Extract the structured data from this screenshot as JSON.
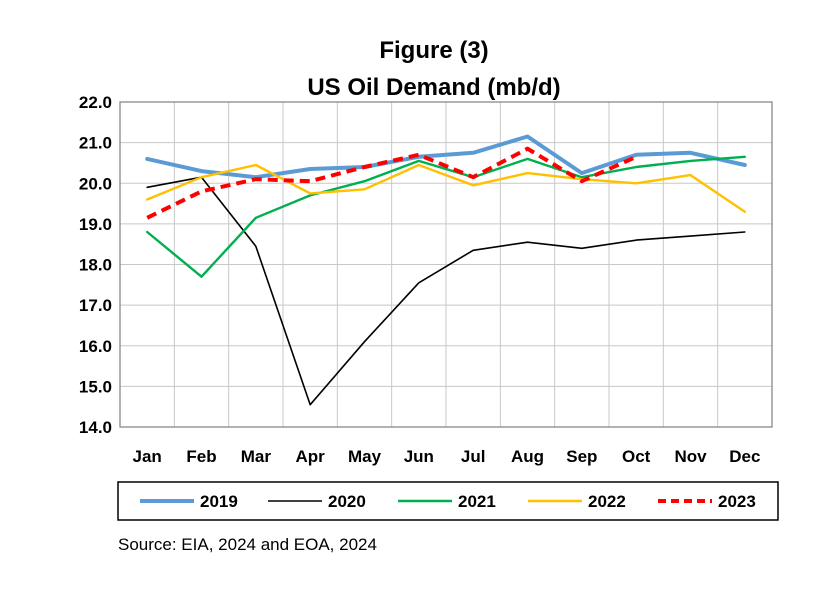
{
  "chart_data": {
    "type": "line",
    "title": "Figure (3)",
    "subtitle": "US Oil Demand (mb/d)",
    "categories": [
      "Jan",
      "Feb",
      "Mar",
      "Apr",
      "May",
      "Jun",
      "Jul",
      "Aug",
      "Sep",
      "Oct",
      "Nov",
      "Dec"
    ],
    "ylim": [
      14.0,
      22.0
    ],
    "yticks": [
      "14.0",
      "15.0",
      "16.0",
      "17.0",
      "18.0",
      "19.0",
      "20.0",
      "21.0",
      "22.0"
    ],
    "grid": true,
    "legend_position": "bottom",
    "series": [
      {
        "name": "2019",
        "color": "#5b9bd5",
        "style": "solid-thick",
        "values": [
          20.6,
          20.3,
          20.15,
          20.35,
          20.4,
          20.65,
          20.75,
          21.15,
          20.25,
          20.7,
          20.75,
          20.45
        ]
      },
      {
        "name": "2020",
        "color": "#000000",
        "style": "solid-thin",
        "values": [
          19.9,
          20.15,
          18.45,
          14.55,
          16.1,
          17.55,
          18.35,
          18.55,
          18.4,
          18.6,
          18.7,
          18.8
        ]
      },
      {
        "name": "2021",
        "color": "#00b050",
        "style": "solid",
        "values": [
          18.8,
          17.7,
          19.15,
          19.7,
          20.05,
          20.55,
          20.15,
          20.6,
          20.15,
          20.4,
          20.55,
          20.65
        ]
      },
      {
        "name": "2022",
        "color": "#ffc000",
        "style": "solid",
        "values": [
          19.6,
          20.15,
          20.45,
          19.75,
          19.85,
          20.45,
          19.95,
          20.25,
          20.1,
          20.0,
          20.2,
          19.3
        ]
      },
      {
        "name": "2023",
        "color": "#ff0000",
        "style": "dashed",
        "values": [
          19.15,
          19.8,
          20.1,
          20.05,
          20.4,
          20.7,
          20.15,
          20.85,
          20.05,
          20.65,
          null,
          null
        ]
      }
    ]
  },
  "source": "Source: EIA, 2024 and EOA, 2024"
}
